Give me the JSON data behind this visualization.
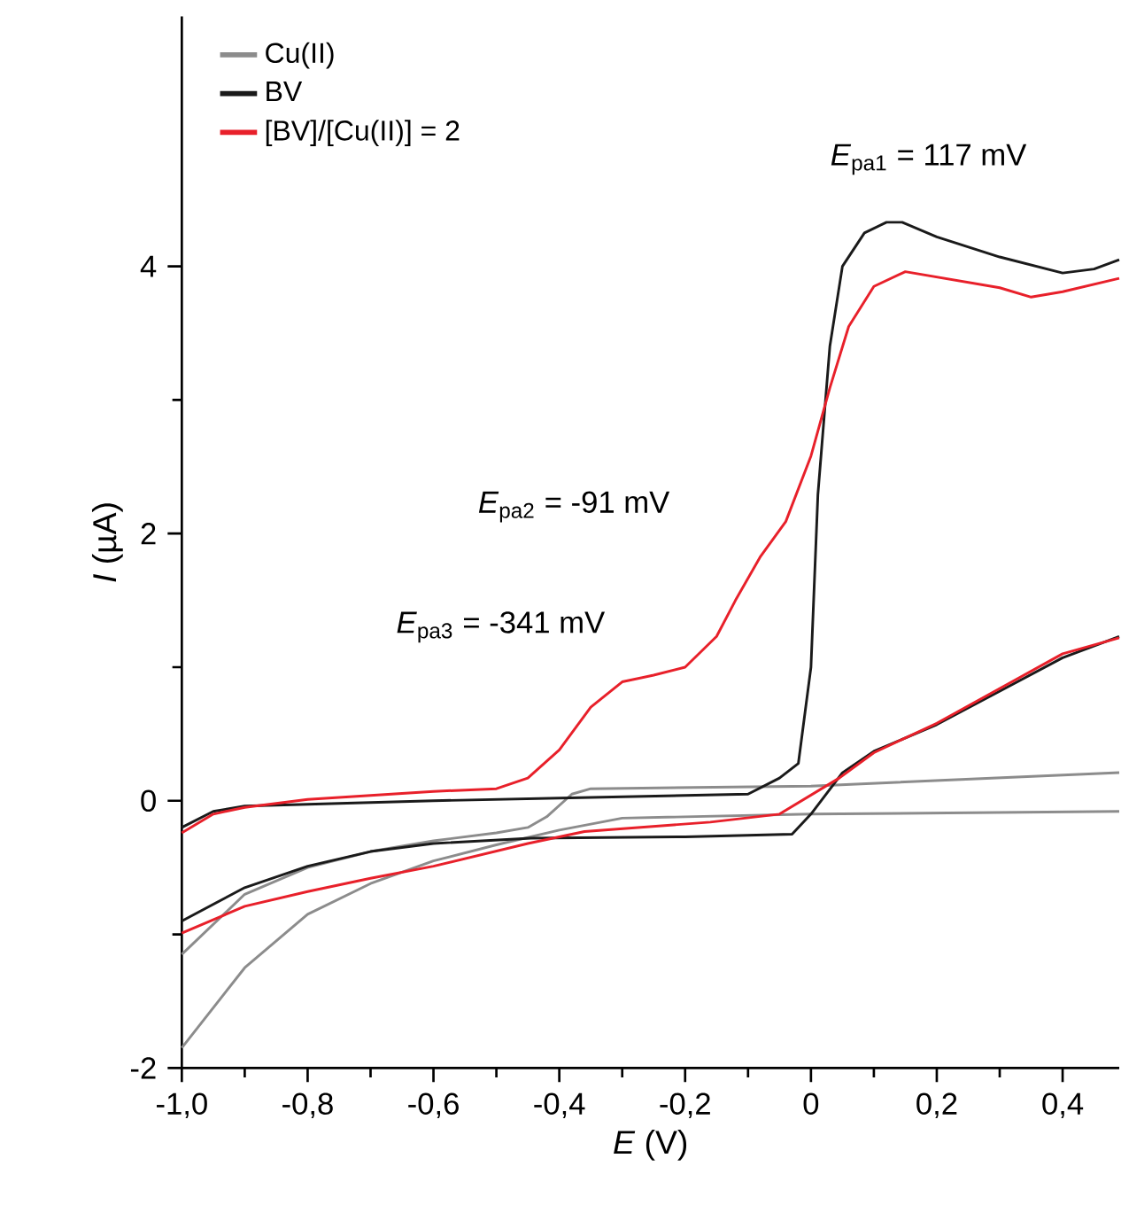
{
  "chart_data": {
    "type": "line",
    "xlabel": "*E* (V)",
    "ylabel": "*I* (µA)",
    "xlim": [
      -1.0,
      0.49
    ],
    "ylim": [
      -2,
      5.87
    ],
    "xticks": [
      {
        "value": -1.0,
        "label": "-1,0"
      },
      {
        "value": -0.8,
        "label": "-0,8"
      },
      {
        "value": -0.6,
        "label": "-0,6"
      },
      {
        "value": -0.4,
        "label": "-0,4"
      },
      {
        "value": -0.2,
        "label": "-0,2"
      },
      {
        "value": 0,
        "label": "0"
      },
      {
        "value": 0.2,
        "label": "0,2"
      },
      {
        "value": 0.4,
        "label": "0,4"
      }
    ],
    "yticks": [
      -2,
      0,
      2,
      4
    ],
    "grid": false,
    "legend": "top left",
    "marker": "none",
    "line_style": "solid",
    "annotations": [
      "*E*$_{pa1}$ = 117 mV",
      "*E*$_{pa2}$  = -91 mV",
      "*E*$_{pa3}$ = -341 mV"
    ],
    "series": [
      {
        "name": "Cu(II)",
        "color": "#8c8c8c",
        "x": [
          -1.0,
          -0.9,
          -0.8,
          -0.7,
          -0.6,
          -0.5,
          -0.45,
          -0.42,
          -0.38,
          -0.35,
          0.0,
          0.49
        ],
        "values": [
          -1.15,
          -0.7,
          -0.5,
          -0.38,
          -0.3,
          -0.24,
          -0.2,
          -0.12,
          0.05,
          0.09,
          0.11,
          0.21
        ]
      },
      {
        "name": "BV",
        "color": "#1a1a1a",
        "x": [
          -1.0,
          -0.95,
          -0.9,
          -0.6,
          -0.4,
          -0.1,
          -0.05,
          -0.02,
          0.0,
          0.011,
          0.03,
          0.05,
          0.085,
          0.12,
          0.145,
          0.2,
          0.3,
          0.4,
          0.45,
          0.49
        ],
        "values": [
          -0.2,
          -0.08,
          -0.04,
          0.0,
          0.02,
          0.05,
          0.17,
          0.28,
          1.0,
          2.29,
          3.4,
          4.0,
          4.25,
          4.33,
          4.33,
          4.22,
          4.07,
          3.95,
          3.98,
          4.05
        ]
      },
      {
        "name": "[BV]/[Cu(II)] = 2",
        "color": "#e8202a",
        "x": [
          -1.0,
          -0.95,
          -0.9,
          -0.8,
          -0.6,
          -0.5,
          -0.45,
          -0.4,
          -0.35,
          -0.3,
          -0.25,
          -0.2,
          -0.15,
          -0.12,
          -0.08,
          -0.04,
          0.0,
          0.03,
          0.06,
          0.1,
          0.15,
          0.2,
          0.3,
          0.35,
          0.4,
          0.49
        ],
        "values": [
          -0.24,
          -0.1,
          -0.05,
          0.01,
          0.07,
          0.09,
          0.17,
          0.38,
          0.7,
          0.89,
          0.94,
          1.0,
          1.23,
          1.5,
          1.83,
          2.09,
          2.58,
          3.09,
          3.55,
          3.85,
          3.96,
          3.92,
          3.84,
          3.77,
          3.81,
          3.91
        ]
      },
      {
        "color": "#8c8c8c",
        "x": [
          0.49,
          0.0,
          -0.3,
          -0.4,
          -0.5,
          -0.6,
          -0.7,
          -0.8,
          -0.9,
          -1.0
        ],
        "values": [
          -0.08,
          -0.1,
          -0.13,
          -0.22,
          -0.33,
          -0.45,
          -0.62,
          -0.85,
          -1.25,
          -1.85
        ]
      },
      {
        "color": "#1a1a1a",
        "x": [
          0.49,
          0.4,
          0.2,
          0.1,
          0.05,
          0.0,
          -0.03,
          -0.2,
          -0.445,
          -0.6,
          -0.7,
          -0.8,
          -0.9,
          -1.0
        ],
        "values": [
          1.23,
          1.07,
          0.57,
          0.37,
          0.21,
          -0.1,
          -0.25,
          -0.27,
          -0.28,
          -0.32,
          -0.38,
          -0.49,
          -0.65,
          -0.9
        ]
      },
      {
        "color": "#e8202a",
        "x": [
          0.49,
          0.4,
          0.2,
          0.1,
          0.045,
          -0.05,
          -0.16,
          -0.36,
          -0.45,
          -0.6,
          -0.7,
          -0.8,
          -0.9,
          -1.0
        ],
        "values": [
          1.22,
          1.1,
          0.58,
          0.36,
          0.17,
          -0.1,
          -0.16,
          -0.23,
          -0.32,
          -0.49,
          -0.58,
          -0.68,
          -0.79,
          -0.99
        ]
      }
    ]
  }
}
